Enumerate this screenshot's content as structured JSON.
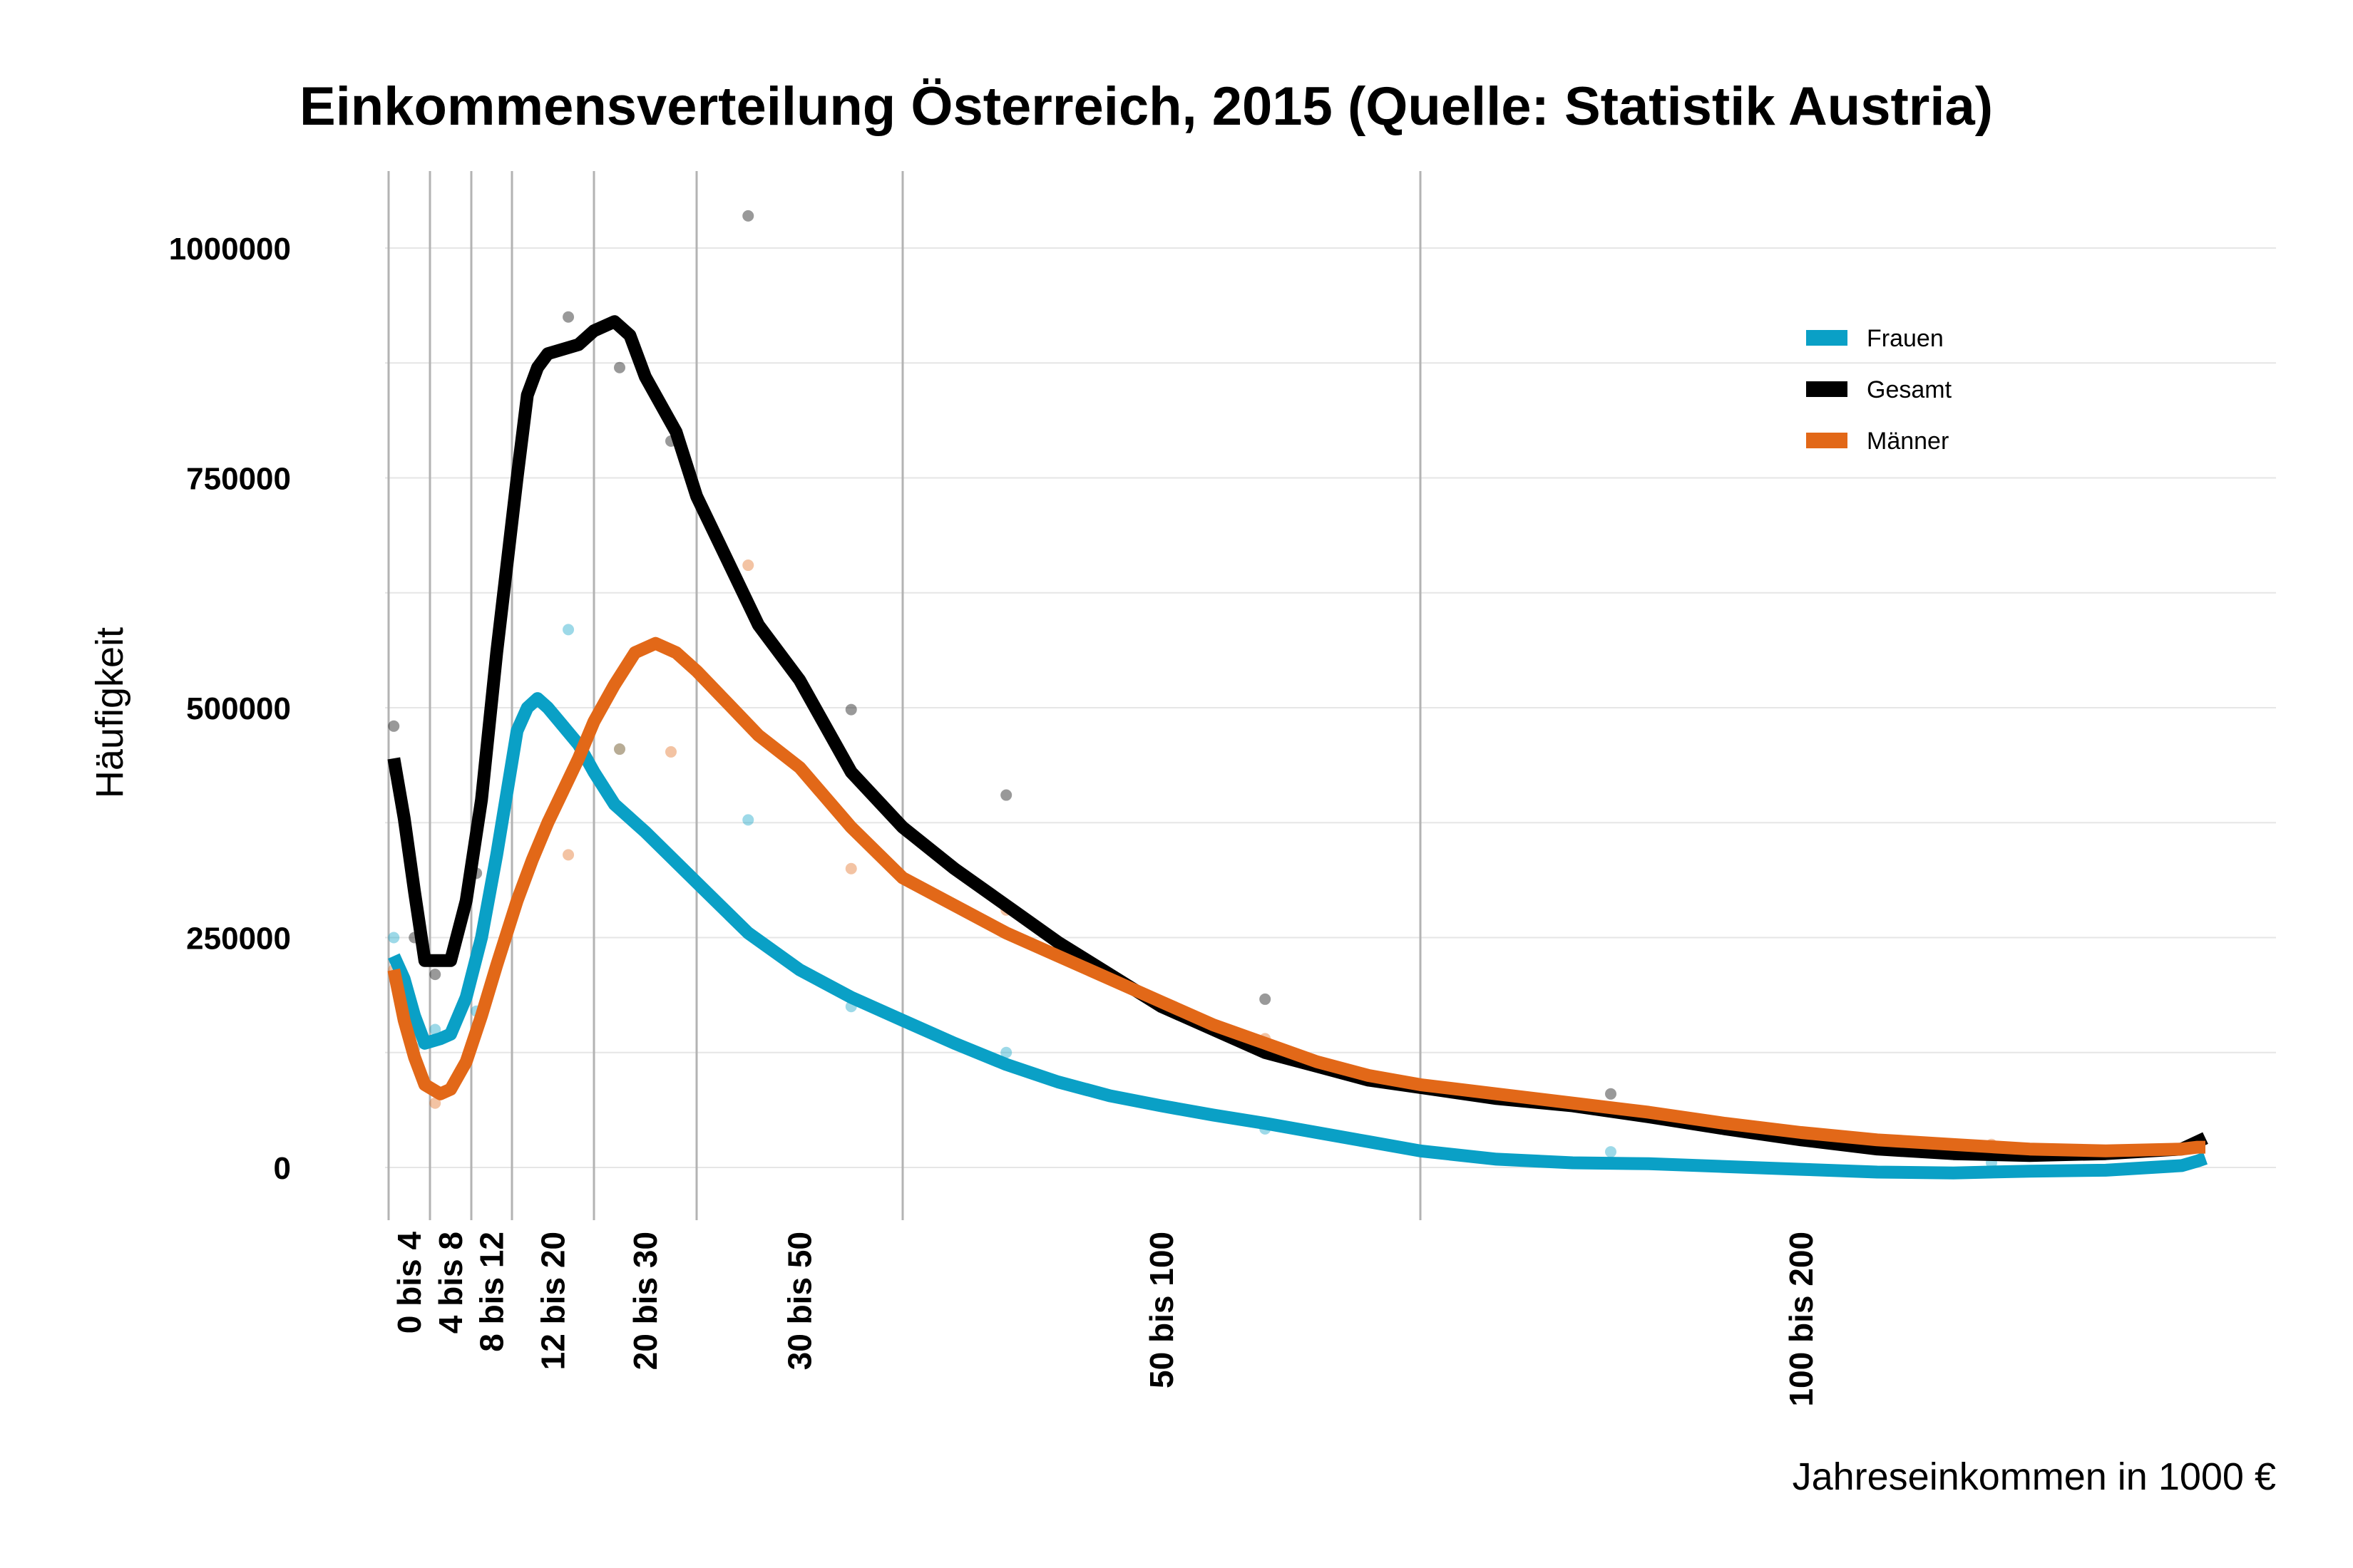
{
  "chart_data": {
    "type": "line",
    "title": "Einkommensverteilung Österreich, 2015 (Quelle: Statistik Austria)",
    "xlabel": "Jahreseinkommen in 1000 €",
    "ylabel": "Häufigkeit",
    "xlim": [
      -1,
      210
    ],
    "ylim": [
      -50000,
      1080000
    ],
    "yticks": [
      0,
      250000,
      500000,
      750000,
      1000000
    ],
    "ytick_labels": [
      "0",
      "250000",
      "500000",
      "750000",
      "1000000"
    ],
    "grid": true,
    "legend_position": "top-right",
    "category_boundaries": [
      0,
      4,
      8,
      12,
      20,
      30,
      50,
      100,
      200
    ],
    "categories": [
      {
        "label": "0 bis 4",
        "x": 2
      },
      {
        "label": "4 bis 8",
        "x": 6
      },
      {
        "label": "8 bis 12",
        "x": 10
      },
      {
        "label": "12 bis 20",
        "x": 16
      },
      {
        "label": "20 bis 30",
        "x": 25
      },
      {
        "label": "30 bis 50",
        "x": 40
      },
      {
        "label": "50 bis 100",
        "x": 75
      },
      {
        "label": "100 bis 200",
        "x": 150
      }
    ],
    "series": [
      {
        "name": "Frauen",
        "color": "#0aa0c6",
        "points": [
          [
            0.5,
            250000
          ],
          [
            2.5,
            130000
          ],
          [
            4.5,
            150000
          ],
          [
            8.5,
            170000
          ],
          [
            17.5,
            585000
          ],
          [
            22.5,
            455000
          ],
          [
            27.5,
            338000
          ],
          [
            35,
            378000
          ],
          [
            45,
            175000
          ],
          [
            60,
            125000
          ],
          [
            85,
            42000
          ],
          [
            125,
            17000
          ],
          [
            175,
            5000
          ]
        ],
        "curve": [
          [
            0.5,
            230000
          ],
          [
            1.5,
            205000
          ],
          [
            2.5,
            165000
          ],
          [
            3.5,
            135000
          ],
          [
            5,
            140000
          ],
          [
            6,
            145000
          ],
          [
            7.5,
            185000
          ],
          [
            9,
            250000
          ],
          [
            10.5,
            340000
          ],
          [
            12.5,
            475000
          ],
          [
            13.5,
            500000
          ],
          [
            14.5,
            510000
          ],
          [
            15.5,
            500000
          ],
          [
            17,
            480000
          ],
          [
            18.5,
            460000
          ],
          [
            20,
            430000
          ],
          [
            22,
            395000
          ],
          [
            25,
            365000
          ],
          [
            30,
            310000
          ],
          [
            35,
            255000
          ],
          [
            40,
            215000
          ],
          [
            45,
            185000
          ],
          [
            50,
            160000
          ],
          [
            55,
            135000
          ],
          [
            60,
            112000
          ],
          [
            65,
            93000
          ],
          [
            70,
            78000
          ],
          [
            75,
            67000
          ],
          [
            80,
            57000
          ],
          [
            85,
            48000
          ],
          [
            90,
            38000
          ],
          [
            95,
            28000
          ],
          [
            100,
            18000
          ],
          [
            110,
            9000
          ],
          [
            120,
            5000
          ],
          [
            130,
            4000
          ],
          [
            140,
            1000
          ],
          [
            150,
            -2000
          ],
          [
            160,
            -5000
          ],
          [
            170,
            -6000
          ],
          [
            180,
            -4000
          ],
          [
            190,
            -3000
          ],
          [
            200,
            2000
          ],
          [
            210,
            7000
          ],
          [
            215,
            10000
          ]
        ]
      },
      {
        "name": "Gesamt",
        "color": "#000000",
        "points": [
          [
            0.5,
            480000
          ],
          [
            2.5,
            250000
          ],
          [
            4.5,
            210000
          ],
          [
            8.5,
            320000
          ],
          [
            17.5,
            925000
          ],
          [
            22.5,
            870000
          ],
          [
            27.5,
            790000
          ],
          [
            35,
            1035000
          ],
          [
            45,
            498000
          ],
          [
            60,
            405000
          ],
          [
            85,
            183000
          ],
          [
            125,
            80000
          ],
          [
            175,
            20000
          ]
        ],
        "curve": [
          [
            0.5,
            445000
          ],
          [
            1.5,
            380000
          ],
          [
            2.5,
            300000
          ],
          [
            3.5,
            225000
          ],
          [
            5,
            225000
          ],
          [
            6,
            225000
          ],
          [
            7.5,
            290000
          ],
          [
            9,
            400000
          ],
          [
            10.5,
            560000
          ],
          [
            12.5,
            750000
          ],
          [
            13.5,
            840000
          ],
          [
            14.5,
            870000
          ],
          [
            15.5,
            885000
          ],
          [
            17,
            890000
          ],
          [
            18.5,
            895000
          ],
          [
            20,
            910000
          ],
          [
            22,
            920000
          ],
          [
            23.5,
            905000
          ],
          [
            25,
            860000
          ],
          [
            28,
            800000
          ],
          [
            30,
            730000
          ],
          [
            33,
            660000
          ],
          [
            36,
            590000
          ],
          [
            40,
            530000
          ],
          [
            45,
            430000
          ],
          [
            50,
            370000
          ],
          [
            55,
            325000
          ],
          [
            60,
            285000
          ],
          [
            65,
            245000
          ],
          [
            70,
            210000
          ],
          [
            75,
            175000
          ],
          [
            80,
            150000
          ],
          [
            85,
            125000
          ],
          [
            90,
            110000
          ],
          [
            95,
            95000
          ],
          [
            100,
            87000
          ],
          [
            110,
            75000
          ],
          [
            120,
            67000
          ],
          [
            130,
            55000
          ],
          [
            140,
            42000
          ],
          [
            150,
            30000
          ],
          [
            160,
            20000
          ],
          [
            170,
            15000
          ],
          [
            180,
            13000
          ],
          [
            190,
            15000
          ],
          [
            200,
            20000
          ],
          [
            210,
            28000
          ],
          [
            215,
            32000
          ]
        ]
      },
      {
        "name": "Männer",
        "color": "#e26818",
        "points": [
          [
            0.5,
            215000
          ],
          [
            2.5,
            120000
          ],
          [
            4.5,
            70000
          ],
          [
            8.5,
            150000
          ],
          [
            17.5,
            340000
          ],
          [
            22.5,
            455000
          ],
          [
            27.5,
            452000
          ],
          [
            35,
            655000
          ],
          [
            45,
            325000
          ],
          [
            60,
            280000
          ],
          [
            85,
            140000
          ],
          [
            125,
            65000
          ],
          [
            175,
            25000
          ]
        ],
        "curve": [
          [
            0.5,
            215000
          ],
          [
            1.5,
            160000
          ],
          [
            2.5,
            120000
          ],
          [
            3.5,
            90000
          ],
          [
            5,
            80000
          ],
          [
            6,
            85000
          ],
          [
            7.5,
            115000
          ],
          [
            9,
            165000
          ],
          [
            10.5,
            220000
          ],
          [
            12.5,
            290000
          ],
          [
            14,
            335000
          ],
          [
            15.5,
            375000
          ],
          [
            17,
            410000
          ],
          [
            18.5,
            445000
          ],
          [
            20,
            485000
          ],
          [
            22,
            525000
          ],
          [
            24,
            560000
          ],
          [
            26,
            570000
          ],
          [
            28,
            560000
          ],
          [
            30,
            540000
          ],
          [
            33,
            505000
          ],
          [
            36,
            470000
          ],
          [
            40,
            435000
          ],
          [
            45,
            370000
          ],
          [
            50,
            315000
          ],
          [
            55,
            285000
          ],
          [
            60,
            255000
          ],
          [
            65,
            230000
          ],
          [
            70,
            205000
          ],
          [
            75,
            180000
          ],
          [
            80,
            155000
          ],
          [
            85,
            135000
          ],
          [
            90,
            115000
          ],
          [
            95,
            100000
          ],
          [
            100,
            90000
          ],
          [
            110,
            80000
          ],
          [
            120,
            70000
          ],
          [
            130,
            60000
          ],
          [
            140,
            48000
          ],
          [
            150,
            38000
          ],
          [
            160,
            30000
          ],
          [
            170,
            25000
          ],
          [
            180,
            20000
          ],
          [
            190,
            18000
          ],
          [
            200,
            20000
          ],
          [
            210,
            22000
          ],
          [
            215,
            22000
          ]
        ]
      }
    ]
  }
}
